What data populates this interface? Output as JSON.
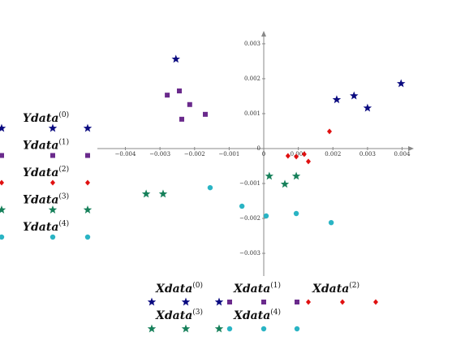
{
  "chart_data": {
    "type": "scatter",
    "xlim": [
      -0.00481,
      0.00434
    ],
    "ylim": [
      -0.00365,
      0.00337
    ],
    "xticks": [
      {
        "value": -0.004,
        "label": "−0.004"
      },
      {
        "value": -0.003,
        "label": "−0.003"
      },
      {
        "value": -0.002,
        "label": "−0.002"
      },
      {
        "value": -0.001,
        "label": "−0.001"
      },
      0,
      0.001,
      0.002,
      0.003,
      0.004
    ],
    "yticks": [
      {
        "value": -0.003,
        "label": "−0.003"
      },
      {
        "value": -0.002,
        "label": "−0.002"
      },
      {
        "value": -0.001,
        "label": "−0.001"
      },
      0,
      0.001,
      0.002,
      0.003
    ],
    "series": [
      {
        "name": "Xdata",
        "name_sup": "(0)",
        "y_name": "Ydata",
        "y_name_sup": "(0)",
        "color": "#0a0a80",
        "marker": "star",
        "x": [
          -0.00254,
          0.00211,
          0.00261,
          0.003,
          0.00397
        ],
        "values": [
          0.00256,
          0.0014,
          0.00151,
          0.00116,
          0.00186
        ]
      },
      {
        "name": "Xdata",
        "name_sup": "(1)",
        "y_name": "Ydata",
        "y_name_sup": "(1)",
        "color": "#6a2a8c",
        "marker": "square",
        "x": [
          -0.00244,
          -0.00279,
          -0.00214,
          -0.00237,
          -0.00169
        ],
        "values": [
          0.00165,
          0.00153,
          0.00126,
          0.00084,
          0.00098
        ]
      },
      {
        "name": "Xdata",
        "name_sup": "(2)",
        "y_name": "Ydata",
        "y_name_sup": "(2)",
        "color": "#e01010",
        "marker": "diamond",
        "x": [
          0.0019,
          0.0007,
          0.00094,
          0.00117,
          0.00129
        ],
        "values": [
          0.00049,
          -0.00021,
          -0.00023,
          -0.00016,
          -0.00037
        ]
      },
      {
        "name": "Xdata",
        "name_sup": "(3)",
        "y_name": "Ydata",
        "y_name_sup": "(3)",
        "color": "#16805a",
        "marker": "star",
        "x": [
          -0.0034,
          -0.00291,
          0.00016,
          0.00061,
          0.00094
        ],
        "values": [
          -0.0013,
          -0.0013,
          -0.00079,
          -0.00102,
          -0.00079
        ]
      },
      {
        "name": "Xdata",
        "name_sup": "(4)",
        "y_name": "Ydata",
        "y_name_sup": "(4)",
        "color": "#2ab4c4",
        "marker": "circle",
        "x": [
          -0.00155,
          -0.00063,
          7e-05,
          0.00094,
          0.00195
        ],
        "values": [
          -0.00112,
          -0.00165,
          -0.00193,
          -0.00186,
          -0.00212
        ]
      }
    ]
  }
}
